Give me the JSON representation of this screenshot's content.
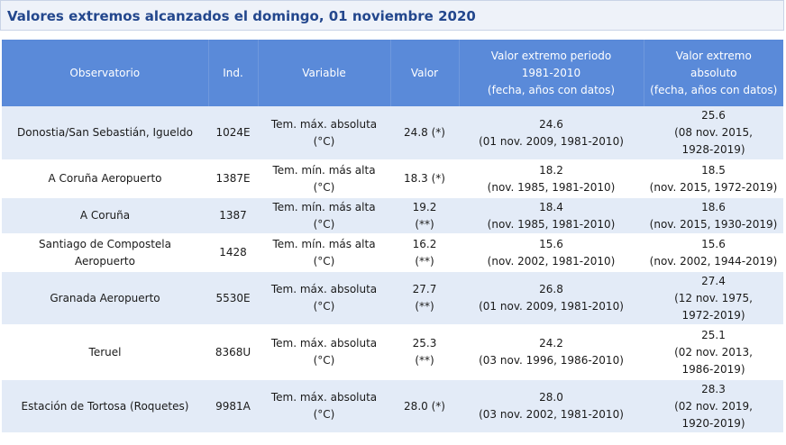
{
  "title": "Valores extremos alcanzados el domingo, 01 noviembre 2020",
  "table": {
    "headers": [
      "Observatorio",
      "Ind.",
      "Variable",
      "Valor",
      "Valor extremo periodo\n1981-2010\n(fecha, años con datos)",
      "Valor extremo\nabsoluto\n(fecha, años con datos)"
    ],
    "rows": [
      {
        "observatorio": "Donostia/San Sebastián, Igueldo",
        "ind": "1024E",
        "variable": "Tem. máx. absoluta\n(°C)",
        "valor": "24.8 (*)",
        "periodo": "24.6\n(01 nov. 2009, 1981-2010)",
        "absoluto": "25.6\n(08 nov. 2015,\n1928-2019)"
      },
      {
        "observatorio": "A Coruña Aeropuerto",
        "ind": "1387E",
        "variable": "Tem. mín. más alta\n(°C)",
        "valor": "18.3 (*)",
        "periodo": "18.2\n(nov. 1985, 1981-2010)",
        "absoluto": "18.5\n(nov. 2015, 1972-2019)"
      },
      {
        "observatorio": "A Coruña",
        "ind": "1387",
        "variable": "Tem. mín. más alta\n(°C)",
        "valor": "19.2\n(**)",
        "periodo": "18.4\n(nov. 1985, 1981-2010)",
        "absoluto": "18.6\n(nov. 2015, 1930-2019)"
      },
      {
        "observatorio": "Santiago de Compostela\nAeropuerto",
        "ind": "1428",
        "variable": "Tem. mín. más alta\n(°C)",
        "valor": "16.2\n(**)",
        "periodo": "15.6\n(nov. 2002, 1981-2010)",
        "absoluto": "15.6\n(nov. 2002, 1944-2019)"
      },
      {
        "observatorio": "Granada Aeropuerto",
        "ind": "5530E",
        "variable": "Tem. máx. absoluta\n(°C)",
        "valor": "27.7\n(**)",
        "periodo": "26.8\n(01 nov. 2009, 1981-2010)",
        "absoluto": "27.4\n(12 nov. 1975,\n1972-2019)"
      },
      {
        "observatorio": "Teruel",
        "ind": "8368U",
        "variable": "Tem. máx. absoluta\n(°C)",
        "valor": "25.3\n(**)",
        "periodo": "24.2\n(03 nov. 1996, 1986-2010)",
        "absoluto": "25.1\n(02 nov. 2013,\n1986-2019)"
      },
      {
        "observatorio": "Estación de Tortosa (Roquetes)",
        "ind": "9981A",
        "variable": "Tem. máx. absoluta\n(°C)",
        "valor": "28.0 (*)",
        "periodo": "28.0\n(03 nov. 2002, 1981-2010)",
        "absoluto": "28.3\n(02 nov. 2019,\n1920-2019)"
      }
    ]
  }
}
